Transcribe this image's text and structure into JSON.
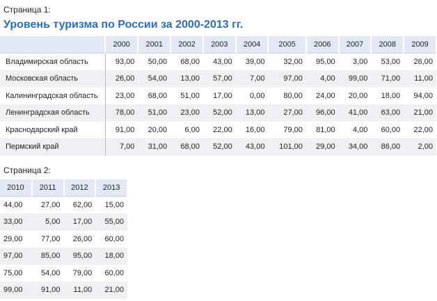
{
  "page1_label": "Страница 1:",
  "title": "Уровень туризма по России за 2000-2013 гг.",
  "page2_label": "Страница 2:",
  "regions": [
    "Владимирская область",
    "Московская область",
    "Калининградская область",
    "Ленинградская область",
    "Краснодарский край",
    "Пермский край"
  ],
  "years1": [
    "2000",
    "2001",
    "2002",
    "2003",
    "2004",
    "2005",
    "2006",
    "2007",
    "2008",
    "2009"
  ],
  "rows1": [
    [
      "93,00",
      "50,00",
      "68,00",
      "43,00",
      "39,00",
      "32,00",
      "95,00",
      "3,00",
      "53,00",
      "26,00"
    ],
    [
      "26,00",
      "54,00",
      "13,00",
      "57,00",
      "7,00",
      "97,00",
      "4,00",
      "99,00",
      "71,00",
      "11,00"
    ],
    [
      "23,00",
      "68,00",
      "51,00",
      "17,00",
      "0,00",
      "80,00",
      "24,00",
      "20,00",
      "18,00",
      "94,00"
    ],
    [
      "78,00",
      "51,00",
      "23,00",
      "52,00",
      "13,00",
      "27,00",
      "96,00",
      "41,00",
      "63,00",
      "21,00"
    ],
    [
      "91,00",
      "20,00",
      "6,00",
      "22,00",
      "16,00",
      "79,00",
      "81,00",
      "4,00",
      "60,00",
      "22,00"
    ],
    [
      "7,00",
      "31,00",
      "68,00",
      "52,00",
      "43,00",
      "101,00",
      "29,00",
      "34,00",
      "86,00",
      "2,00"
    ]
  ],
  "years2": [
    "2010",
    "2011",
    "2012",
    "2013"
  ],
  "rows2": [
    [
      "44,00",
      "27,00",
      "62,00",
      "15,00"
    ],
    [
      "33,00",
      "5,00",
      "17,00",
      "55,00"
    ],
    [
      "29,00",
      "77,00",
      "26,00",
      "60,00"
    ],
    [
      "97,00",
      "85,00",
      "95,00",
      "18,00"
    ],
    [
      "75,00",
      "54,00",
      "79,00",
      "60,00"
    ],
    [
      "99,00",
      "91,00",
      "11,00",
      "21,00"
    ]
  ],
  "colors": {
    "title": "#2a6fb8",
    "header_bg": "#e3e8f5",
    "alt_row": "#eef0f3"
  }
}
